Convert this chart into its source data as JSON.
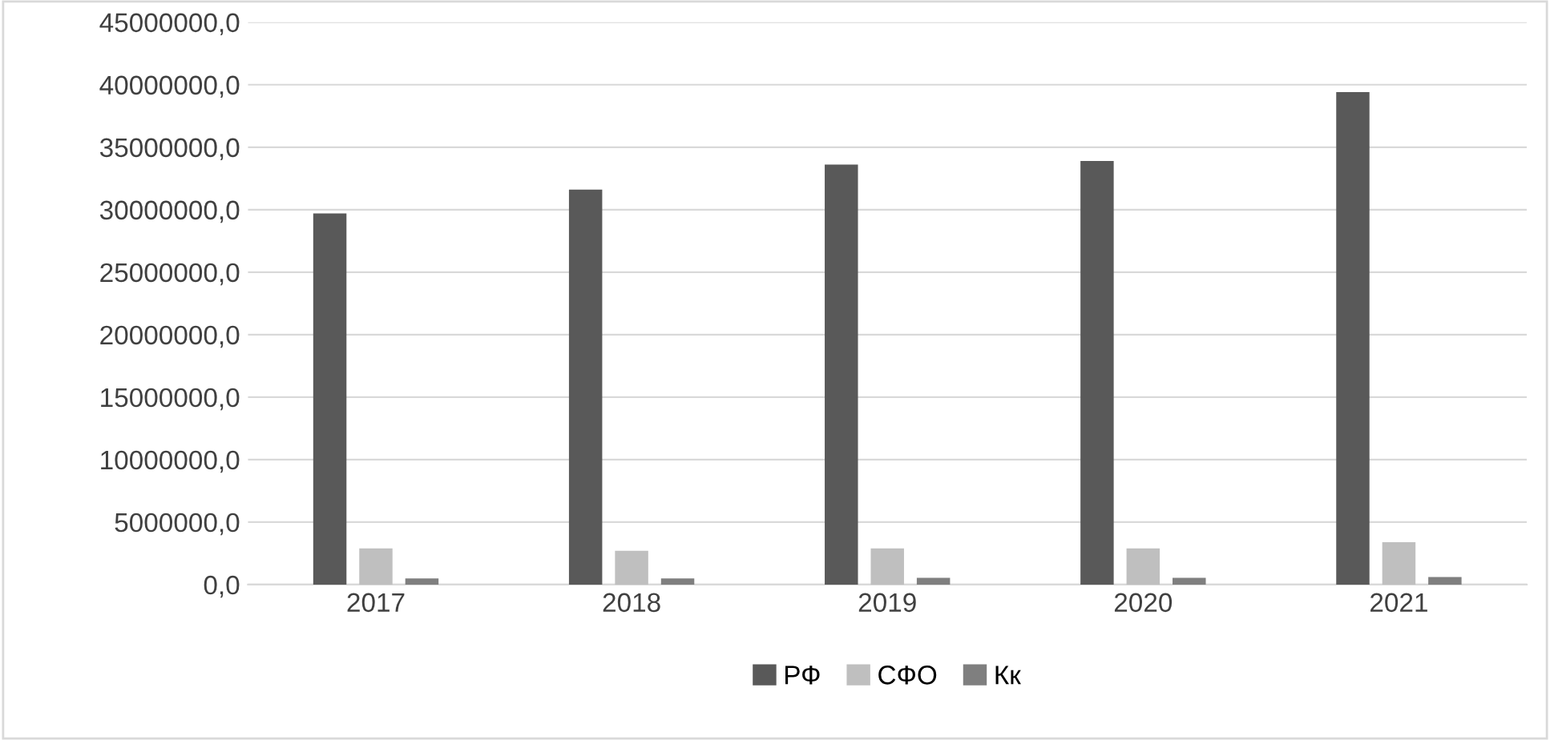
{
  "chart_data": {
    "type": "bar",
    "categories": [
      "2017",
      "2018",
      "2019",
      "2020",
      "2021"
    ],
    "series": [
      {
        "name": "РФ",
        "color": "#595959",
        "values": [
          29700000,
          31600000,
          33600000,
          33900000,
          39400000
        ]
      },
      {
        "name": "СФО",
        "color": "#bfbfbf",
        "values": [
          2900000,
          2700000,
          2900000,
          2900000,
          3400000
        ]
      },
      {
        "name": "Кк",
        "color": "#7f7f7f",
        "values": [
          500000,
          500000,
          550000,
          550000,
          600000
        ]
      }
    ],
    "ylim": [
      0,
      45000000
    ],
    "yticks": [
      {
        "value": 0,
        "label": "0,0"
      },
      {
        "value": 5000000,
        "label": "5000000,0"
      },
      {
        "value": 10000000,
        "label": "10000000,0"
      },
      {
        "value": 15000000,
        "label": "15000000,0"
      },
      {
        "value": 20000000,
        "label": "20000000,0"
      },
      {
        "value": 25000000,
        "label": "25000000,0"
      },
      {
        "value": 30000000,
        "label": "30000000,0"
      },
      {
        "value": 35000000,
        "label": "35000000,0"
      },
      {
        "value": 40000000,
        "label": "40000000,0"
      },
      {
        "value": 45000000,
        "label": "45000000,0"
      }
    ],
    "grid": "y",
    "legend": "bottom"
  }
}
